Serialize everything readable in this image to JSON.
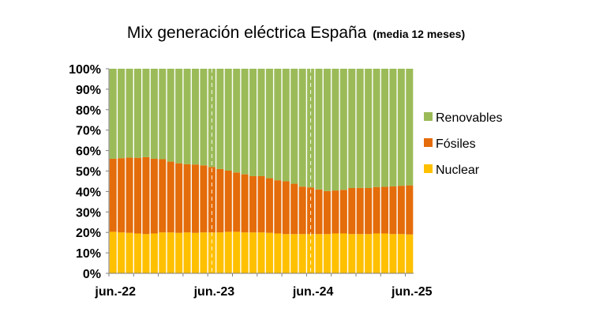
{
  "chart_data": {
    "type": "bar",
    "stacked": true,
    "percent": true,
    "title": "Mix generación eléctrica España",
    "subtitle": "(media 12 meses)",
    "xlabel": "",
    "ylabel": "",
    "ylim": [
      0,
      100
    ],
    "yticks": [
      "0%",
      "10%",
      "20%",
      "30%",
      "40%",
      "50%",
      "60%",
      "70%",
      "80%",
      "90%",
      "100%"
    ],
    "xtick_labels": [
      {
        "label": "jun.-22",
        "index": 0
      },
      {
        "label": "jun.-23",
        "index": 12
      },
      {
        "label": "jun.-24",
        "index": 24
      },
      {
        "label": "jun.-25",
        "index": 36
      }
    ],
    "categories": [
      "jun-22",
      "jul-22",
      "ago-22",
      "sep-22",
      "oct-22",
      "nov-22",
      "dic-22",
      "ene-23",
      "feb-23",
      "mar-23",
      "abr-23",
      "may-23",
      "jun-23",
      "jul-23",
      "ago-23",
      "sep-23",
      "oct-23",
      "nov-23",
      "dic-23",
      "ene-24",
      "feb-24",
      "mar-24",
      "abr-24",
      "may-24",
      "jun-24",
      "jul-24",
      "ago-24",
      "sep-24",
      "oct-24",
      "nov-24",
      "dic-24",
      "ene-25",
      "feb-25",
      "mar-25",
      "abr-25",
      "may-25",
      "jun-25"
    ],
    "series": [
      {
        "name": "Nuclear",
        "color": "#FFC000",
        "values": [
          20.3,
          20.0,
          19.8,
          19.5,
          19.2,
          19.5,
          20.0,
          20.0,
          19.8,
          20.0,
          19.8,
          20.0,
          20.0,
          20.0,
          20.3,
          20.3,
          20.0,
          20.0,
          20.0,
          19.8,
          19.5,
          19.2,
          19.2,
          19.2,
          19.2,
          19.2,
          19.2,
          19.5,
          19.5,
          19.2,
          19.2,
          19.2,
          19.5,
          19.5,
          19.2,
          19.2,
          19.0
        ]
      },
      {
        "name": "Fósiles",
        "color": "#E46C0A",
        "values": [
          35.7,
          36.3,
          36.8,
          37.0,
          37.6,
          36.5,
          35.8,
          34.6,
          34.0,
          33.3,
          33.4,
          32.8,
          32.0,
          31.0,
          29.9,
          29.0,
          28.4,
          27.5,
          27.5,
          26.7,
          26.0,
          25.8,
          24.6,
          23.2,
          22.8,
          21.8,
          21.0,
          21.0,
          21.3,
          22.5,
          22.6,
          22.5,
          22.7,
          22.8,
          23.3,
          23.6,
          24.0
        ]
      },
      {
        "name": "Renovables",
        "color": "#9BBB59",
        "values": [
          44.0,
          43.7,
          43.4,
          43.5,
          43.2,
          44.0,
          44.2,
          45.4,
          46.2,
          46.7,
          46.8,
          47.2,
          48.0,
          49.0,
          49.8,
          50.7,
          51.6,
          52.5,
          52.5,
          53.5,
          54.5,
          55.0,
          56.2,
          57.6,
          58.0,
          59.0,
          59.8,
          59.5,
          59.2,
          58.3,
          58.2,
          58.3,
          57.8,
          57.7,
          57.5,
          57.2,
          57.0
        ]
      }
    ],
    "legend": {
      "position": "right",
      "order": [
        "Renovables",
        "Fósiles",
        "Nuclear"
      ]
    },
    "grid": {
      "vertical_dashed_at": [
        "jun.-23",
        "jun.-24"
      ]
    }
  }
}
